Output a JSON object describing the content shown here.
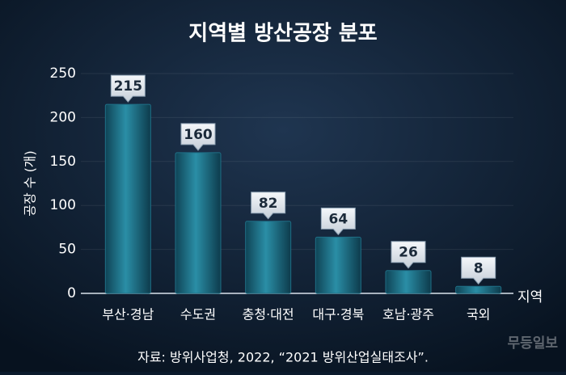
{
  "chart_data": {
    "type": "bar",
    "title": "지역별 방산공장 분포",
    "y_label": "공장 수 (개)",
    "x_label": "지역",
    "categories": [
      "부산·경남",
      "수도권",
      "충청·대전",
      "대구·경북",
      "호남·광주",
      "국외"
    ],
    "values": [
      215,
      160,
      82,
      64,
      26,
      8
    ],
    "color": "#1f6f86",
    "ylim": [
      0,
      250
    ],
    "yticks": [
      0,
      50,
      100,
      150,
      200,
      250
    ],
    "grid": true,
    "source": "자료: 방위사업청, 2022, “2021 방위산업실태조사”.",
    "watermark": "무등일보"
  }
}
